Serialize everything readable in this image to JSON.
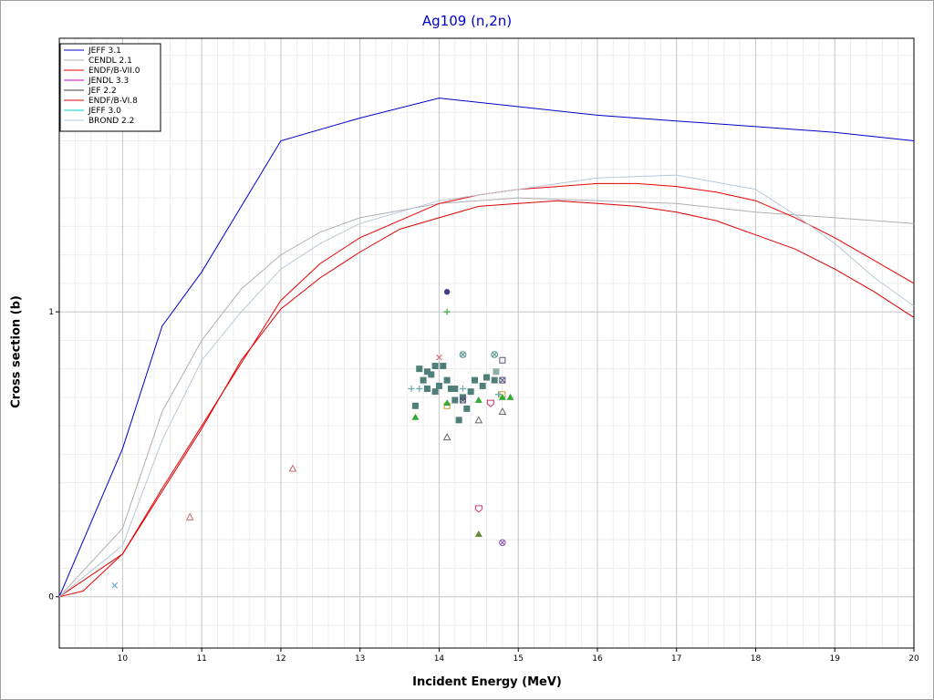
{
  "chart_data": {
    "type": "line",
    "title": "Ag109 (n,2n)",
    "xlabel": "Incident Energy (MeV)",
    "ylabel": "Cross section (b)",
    "xlim": [
      9.2,
      20
    ],
    "ylim": [
      -0.18,
      1.96
    ],
    "x_ticks": [
      "10",
      "11",
      "12",
      "13",
      "14",
      "15",
      "16",
      "17",
      "18",
      "19",
      "20"
    ],
    "y_ticks": [
      {
        "value": 0,
        "label": "0"
      },
      {
        "value": 1,
        "label": "1"
      }
    ],
    "grid": true,
    "legend_position": "top-left",
    "series": [
      {
        "name": "JEFF 3.1",
        "color": "#0000cc",
        "points": [
          [
            9.2,
            0
          ],
          [
            10,
            0.52
          ],
          [
            10.5,
            0.95
          ],
          [
            11,
            1.14
          ],
          [
            12,
            1.6
          ],
          [
            13,
            1.68
          ],
          [
            14,
            1.75
          ],
          [
            15,
            1.72
          ],
          [
            16,
            1.69
          ],
          [
            17,
            1.67
          ],
          [
            18,
            1.65
          ],
          [
            19,
            1.63
          ],
          [
            20,
            1.6
          ]
        ]
      },
      {
        "name": "CENDL 2.1",
        "color": "#b0b0b0",
        "points": [
          [
            9.2,
            0
          ],
          [
            10,
            0.24
          ],
          [
            10.5,
            0.65
          ],
          [
            11,
            0.9
          ],
          [
            11.5,
            1.08
          ],
          [
            12,
            1.2
          ],
          [
            12.5,
            1.28
          ],
          [
            13,
            1.33
          ],
          [
            14,
            1.38
          ],
          [
            15,
            1.4
          ],
          [
            16,
            1.39
          ],
          [
            17,
            1.38
          ],
          [
            18,
            1.35
          ],
          [
            19,
            1.33
          ],
          [
            20,
            1.31
          ]
        ]
      },
      {
        "name": "ENDF/B-VII.0",
        "color": "#ee0000",
        "points": [
          [
            9.2,
            0
          ],
          [
            9.5,
            0.02
          ],
          [
            10,
            0.15
          ],
          [
            10.5,
            0.38
          ],
          [
            11,
            0.6
          ],
          [
            11.5,
            0.82
          ],
          [
            12,
            1.04
          ],
          [
            12.5,
            1.17
          ],
          [
            13,
            1.26
          ],
          [
            14,
            1.38
          ],
          [
            14.5,
            1.41
          ],
          [
            15,
            1.43
          ],
          [
            15.5,
            1.44
          ],
          [
            16,
            1.45
          ],
          [
            16.5,
            1.45
          ],
          [
            17,
            1.44
          ],
          [
            17.5,
            1.42
          ],
          [
            18,
            1.39
          ],
          [
            18.5,
            1.33
          ],
          [
            19,
            1.26
          ],
          [
            19.5,
            1.18
          ],
          [
            20,
            1.1
          ]
        ]
      },
      {
        "name": "JENDL 3.3",
        "color": "#cc00cc",
        "points": []
      },
      {
        "name": "JEF 2.2",
        "color": "#404040",
        "points": []
      },
      {
        "name": "ENDF/B-VI.8",
        "color": "#dd0000",
        "points": [
          [
            9.2,
            0
          ],
          [
            10,
            0.15
          ],
          [
            10.5,
            0.37
          ],
          [
            11,
            0.59
          ],
          [
            11.5,
            0.83
          ],
          [
            12,
            1.01
          ],
          [
            12.5,
            1.12
          ],
          [
            13,
            1.21
          ],
          [
            13.5,
            1.29
          ],
          [
            14,
            1.33
          ],
          [
            14.5,
            1.37
          ],
          [
            15,
            1.38
          ],
          [
            15.5,
            1.39
          ],
          [
            16,
            1.38
          ],
          [
            16.5,
            1.37
          ],
          [
            17,
            1.35
          ],
          [
            17.5,
            1.32
          ],
          [
            18,
            1.27
          ],
          [
            18.5,
            1.22
          ],
          [
            19,
            1.15
          ],
          [
            19.5,
            1.07
          ],
          [
            20,
            0.98
          ]
        ]
      },
      {
        "name": "JEFF 3.0",
        "color": "#00cccc",
        "points": []
      },
      {
        "name": "BROND 2.2",
        "color": "#b8c8d8",
        "points": [
          [
            9.2,
            0
          ],
          [
            10,
            0.18
          ],
          [
            10.5,
            0.55
          ],
          [
            11,
            0.83
          ],
          [
            11.5,
            1.0
          ],
          [
            12,
            1.15
          ],
          [
            12.5,
            1.24
          ],
          [
            13,
            1.31
          ],
          [
            14,
            1.39
          ],
          [
            14.5,
            1.41
          ],
          [
            15,
            1.43
          ],
          [
            16,
            1.47
          ],
          [
            17,
            1.48
          ],
          [
            18,
            1.43
          ],
          [
            18.5,
            1.34
          ],
          [
            19,
            1.24
          ],
          [
            19.5,
            1.12
          ],
          [
            20,
            1.02
          ]
        ]
      }
    ],
    "experimental_points": [
      {
        "x": 14.1,
        "y": 1.07,
        "marker": "circle",
        "color": "#404080"
      },
      {
        "x": 14.1,
        "y": 1.0,
        "marker": "plus",
        "color": "#33aa33"
      },
      {
        "x": 14.0,
        "y": 0.84,
        "marker": "x",
        "color": "#cc6666"
      },
      {
        "x": 14.3,
        "y": 0.85,
        "marker": "circle-x",
        "color": "#4a8a8a"
      },
      {
        "x": 14.7,
        "y": 0.85,
        "marker": "circle-x",
        "color": "#4a8a8a"
      },
      {
        "x": 14.8,
        "y": 0.83,
        "marker": "square-open",
        "color": "#555577"
      },
      {
        "x": 14.72,
        "y": 0.79,
        "marker": "square",
        "color": "#8ab0a8"
      },
      {
        "x": 13.75,
        "y": 0.8,
        "marker": "square",
        "color": "#4e7f78"
      },
      {
        "x": 13.85,
        "y": 0.79,
        "marker": "square",
        "color": "#4e7f78"
      },
      {
        "x": 13.95,
        "y": 0.81,
        "marker": "square",
        "color": "#4e7f78"
      },
      {
        "x": 14.05,
        "y": 0.81,
        "marker": "square",
        "color": "#4e7f78"
      },
      {
        "x": 13.8,
        "y": 0.76,
        "marker": "square",
        "color": "#4e7f78"
      },
      {
        "x": 13.9,
        "y": 0.78,
        "marker": "square",
        "color": "#4e7f78"
      },
      {
        "x": 14.0,
        "y": 0.74,
        "marker": "square",
        "color": "#4e7f78"
      },
      {
        "x": 14.1,
        "y": 0.76,
        "marker": "square",
        "color": "#4e7f78"
      },
      {
        "x": 13.85,
        "y": 0.73,
        "marker": "square",
        "color": "#4e7f78"
      },
      {
        "x": 13.95,
        "y": 0.72,
        "marker": "square",
        "color": "#4e7f78"
      },
      {
        "x": 14.15,
        "y": 0.73,
        "marker": "square",
        "color": "#4e7f78"
      },
      {
        "x": 14.2,
        "y": 0.69,
        "marker": "square",
        "color": "#4e7f78"
      },
      {
        "x": 14.3,
        "y": 0.7,
        "marker": "square",
        "color": "#4e7f78"
      },
      {
        "x": 14.4,
        "y": 0.72,
        "marker": "square",
        "color": "#4e7f78"
      },
      {
        "x": 14.45,
        "y": 0.76,
        "marker": "square",
        "color": "#4e7f78"
      },
      {
        "x": 14.55,
        "y": 0.74,
        "marker": "square",
        "color": "#4e7f78"
      },
      {
        "x": 14.6,
        "y": 0.77,
        "marker": "square",
        "color": "#4e7f78"
      },
      {
        "x": 14.7,
        "y": 0.76,
        "marker": "square",
        "color": "#4e7f78"
      },
      {
        "x": 14.35,
        "y": 0.66,
        "marker": "square",
        "color": "#4e7f78"
      },
      {
        "x": 14.25,
        "y": 0.62,
        "marker": "square",
        "color": "#4e7f78"
      },
      {
        "x": 14.2,
        "y": 0.73,
        "marker": "square",
        "color": "#4e7f78"
      },
      {
        "x": 13.7,
        "y": 0.67,
        "marker": "square",
        "color": "#4e7f78"
      },
      {
        "x": 14.1,
        "y": 0.67,
        "marker": "square-open",
        "color": "#cc9933"
      },
      {
        "x": 14.8,
        "y": 0.71,
        "marker": "square-open",
        "color": "#cc9933"
      },
      {
        "x": 14.3,
        "y": 0.69,
        "marker": "square-x",
        "color": "#555577"
      },
      {
        "x": 14.8,
        "y": 0.76,
        "marker": "square-x",
        "color": "#555577"
      },
      {
        "x": 13.65,
        "y": 0.73,
        "marker": "plus",
        "color": "#6aaaaa"
      },
      {
        "x": 13.75,
        "y": 0.73,
        "marker": "plus",
        "color": "#6aaaaa"
      },
      {
        "x": 14.3,
        "y": 0.73,
        "marker": "plus",
        "color": "#6aaaaa"
      },
      {
        "x": 14.75,
        "y": 0.71,
        "marker": "plus",
        "color": "#6aaaaa"
      },
      {
        "x": 13.7,
        "y": 0.63,
        "marker": "tri",
        "color": "#33aa33"
      },
      {
        "x": 14.1,
        "y": 0.68,
        "marker": "tri",
        "color": "#33aa33"
      },
      {
        "x": 14.5,
        "y": 0.69,
        "marker": "tri",
        "color": "#33aa33"
      },
      {
        "x": 14.8,
        "y": 0.7,
        "marker": "tri",
        "color": "#33aa33"
      },
      {
        "x": 14.9,
        "y": 0.7,
        "marker": "tri",
        "color": "#33aa33"
      },
      {
        "x": 14.65,
        "y": 0.68,
        "marker": "pentagon",
        "color": "#cc3366"
      },
      {
        "x": 14.8,
        "y": 0.65,
        "marker": "tri-open",
        "color": "#666666"
      },
      {
        "x": 14.5,
        "y": 0.62,
        "marker": "tri-open",
        "color": "#666666"
      },
      {
        "x": 14.1,
        "y": 0.56,
        "marker": "tri-open",
        "color": "#666666"
      },
      {
        "x": 12.15,
        "y": 0.45,
        "marker": "tri-open",
        "color": "#cc6666"
      },
      {
        "x": 10.85,
        "y": 0.28,
        "marker": "tri-open",
        "color": "#cc6666"
      },
      {
        "x": 9.9,
        "y": 0.04,
        "marker": "x",
        "color": "#5599cc"
      },
      {
        "x": 14.5,
        "y": 0.31,
        "marker": "pentagon",
        "color": "#cc3366"
      },
      {
        "x": 14.5,
        "y": 0.22,
        "marker": "tri",
        "color": "#668833"
      },
      {
        "x": 14.8,
        "y": 0.19,
        "marker": "circle-x",
        "color": "#8855aa"
      }
    ]
  }
}
